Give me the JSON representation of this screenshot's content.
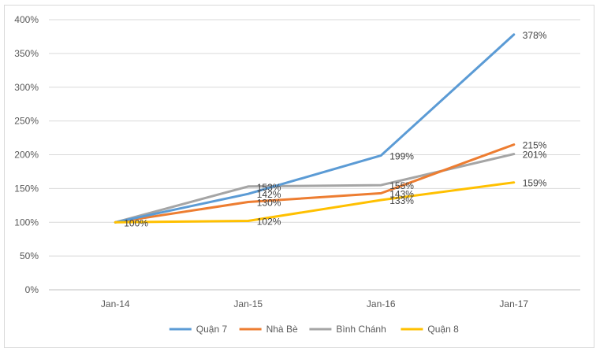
{
  "chart_data": {
    "type": "line",
    "title": "",
    "xlabel": "",
    "ylabel": "",
    "categories": [
      "Jan-14",
      "Jan-15",
      "Jan-16",
      "Jan-17"
    ],
    "ylim": [
      0,
      400
    ],
    "yticks": [
      "0%",
      "50%",
      "100%",
      "150%",
      "200%",
      "250%",
      "300%",
      "350%",
      "400%"
    ],
    "grid": "horizontal",
    "legend_position": "bottom",
    "series": [
      {
        "name": "Quận 7",
        "color": "#5b9bd5",
        "values": [
          100,
          142,
          199,
          378
        ],
        "labels": [
          "",
          "142%",
          "199%",
          "378%"
        ]
      },
      {
        "name": "Nhà Bè",
        "color": "#ed7d31",
        "values": [
          100,
          130,
          143,
          215
        ],
        "labels": [
          "",
          "130%",
          "143%",
          "215%"
        ]
      },
      {
        "name": "Bình Chánh",
        "color": "#a5a5a5",
        "values": [
          100,
          153,
          155,
          201
        ],
        "labels": [
          "",
          "153%",
          "155%",
          "201%"
        ]
      },
      {
        "name": "Quận 8",
        "color": "#ffc000",
        "values": [
          100,
          102,
          133,
          159
        ],
        "labels": [
          "100%",
          "102%",
          "133%",
          "159%"
        ]
      }
    ]
  }
}
